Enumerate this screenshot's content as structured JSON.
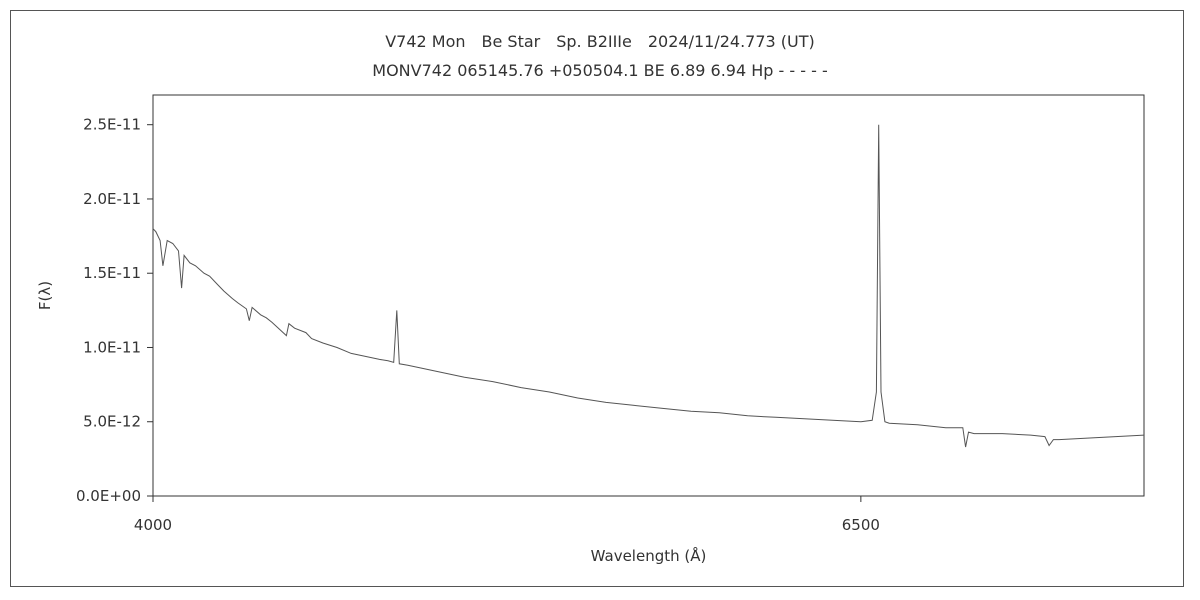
{
  "chart_data": {
    "type": "line",
    "title": "V742 Mon　Be Star　Sp. B2IIIe　2024/11/24.773 (UT)",
    "subtitle": "MONV742 065145.76 +050504.1 BE 6.89 6.94 Hp - - - - -",
    "xlabel": "Wavelength (Å)",
    "ylabel": "F(λ)",
    "xlim": [
      4000,
      7500
    ],
    "ylim": [
      0,
      2.7e-11
    ],
    "x_tick_labels": [
      "4000",
      "6500"
    ],
    "x_tick_values": [
      4000,
      6500
    ],
    "y_tick_labels": [
      "0.0E+00",
      "5.0E-12",
      "1.0E-11",
      "1.5E-11",
      "2.0E-11",
      "2.5E-11"
    ],
    "y_tick_values": [
      0,
      5e-12,
      1e-11,
      1.5e-11,
      2e-11,
      2.5e-11
    ],
    "grid": false,
    "series": [
      {
        "color": "#555555",
        "x": [
          4000,
          4010,
          4025,
          4035,
          4050,
          4070,
          4090,
          4101,
          4110,
          4130,
          4150,
          4180,
          4200,
          4230,
          4250,
          4280,
          4300,
          4330,
          4340,
          4350,
          4380,
          4400,
          4420,
          4471,
          4480,
          4500,
          4540,
          4560,
          4600,
          4650,
          4700,
          4750,
          4800,
          4830,
          4850,
          4861,
          4870,
          4900,
          4950,
          5000,
          5100,
          5200,
          5300,
          5400,
          5500,
          5600,
          5700,
          5800,
          5900,
          6000,
          6100,
          6200,
          6300,
          6400,
          6500,
          6540,
          6555,
          6563,
          6571,
          6585,
          6600,
          6700,
          6800,
          6860,
          6870,
          6880,
          6900,
          7000,
          7100,
          7150,
          7165,
          7180,
          7200,
          7300,
          7400,
          7500
        ],
        "y": [
          1.8e-11,
          1.78e-11,
          1.72e-11,
          1.55e-11,
          1.72e-11,
          1.7e-11,
          1.65e-11,
          1.4e-11,
          1.62e-11,
          1.57e-11,
          1.55e-11,
          1.5e-11,
          1.48e-11,
          1.42e-11,
          1.38e-11,
          1.33e-11,
          1.3e-11,
          1.26e-11,
          1.18e-11,
          1.27e-11,
          1.22e-11,
          1.2e-11,
          1.17e-11,
          1.08e-11,
          1.16e-11,
          1.13e-11,
          1.1e-11,
          1.06e-11,
          1.03e-11,
          1e-11,
          9.6e-12,
          9.4e-12,
          9.2e-12,
          9.1e-12,
          9e-12,
          1.25e-11,
          8.9e-12,
          8.8e-12,
          8.6e-12,
          8.4e-12,
          8e-12,
          7.7e-12,
          7.3e-12,
          7e-12,
          6.6e-12,
          6.3e-12,
          6.1e-12,
          5.9e-12,
          5.7e-12,
          5.6e-12,
          5.4e-12,
          5.3e-12,
          5.2e-12,
          5.1e-12,
          5e-12,
          5.1e-12,
          7e-12,
          2.5e-11,
          7e-12,
          5e-12,
          4.9e-12,
          4.8e-12,
          4.6e-12,
          4.6e-12,
          3.3e-12,
          4.3e-12,
          4.2e-12,
          4.2e-12,
          4.1e-12,
          4e-12,
          3.4e-12,
          3.8e-12,
          3.8e-12,
          3.9e-12,
          4e-12,
          4.1e-12
        ]
      }
    ]
  }
}
